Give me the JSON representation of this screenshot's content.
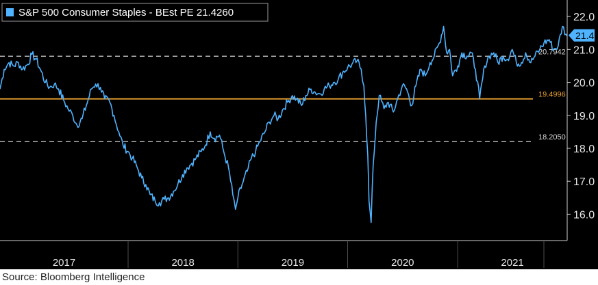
{
  "legend": {
    "label": "S&P 500 Consumer Staples - BEst PE 21.4260",
    "swatch_color": "#4fb3ff"
  },
  "source": "Source: Bloomberg Intelligence",
  "current_value_label": "21.4",
  "colors": {
    "background": "#000000",
    "series": "#4fb3ff",
    "mean_line": "#e8a030",
    "sd_lines": "#d9d9d9",
    "axis_text": "#e6e6e6",
    "divider": "#4d4d4d"
  },
  "chart_data": {
    "type": "line",
    "title": "S&P 500 Consumer Staples - BEst PE 21.4260",
    "xlabel": "",
    "ylabel": "",
    "ylim": [
      15.2,
      22.5
    ],
    "yticks": [
      "16.0",
      "17.0",
      "18.0",
      "19.0",
      "20.0",
      "21.0",
      "22.0"
    ],
    "xlim": [
      "2016-11-01",
      "2021-12-31"
    ],
    "years": [
      "2017",
      "2018",
      "2019",
      "2020",
      "2021"
    ],
    "grid": false,
    "legend_position": "top-left",
    "reference_lines": [
      {
        "value": 20.7942,
        "label": "20.7942",
        "style": "dashed",
        "color": "#d9d9d9"
      },
      {
        "value": 19.4996,
        "label": "19.4996",
        "style": "solid",
        "color": "#e8a030"
      },
      {
        "value": 18.205,
        "label": "18.2050",
        "style": "dashed",
        "color": "#d9d9d9"
      }
    ],
    "series": [
      {
        "name": "S&P 500 Consumer Staples - BEst PE",
        "color": "#4fb3ff",
        "last_value": 21.426,
        "points": [
          [
            "2016-11-01",
            19.8
          ],
          [
            "2016-11-15",
            20.4
          ],
          [
            "2016-12-01",
            20.6
          ],
          [
            "2016-12-15",
            20.5
          ],
          [
            "2017-01-01",
            20.6
          ],
          [
            "2017-01-15",
            20.4
          ],
          [
            "2017-02-01",
            20.55
          ],
          [
            "2017-02-15",
            20.85
          ],
          [
            "2017-03-01",
            20.7
          ],
          [
            "2017-03-15",
            20.4
          ],
          [
            "2017-04-01",
            20.0
          ],
          [
            "2017-04-15",
            19.85
          ],
          [
            "2017-05-01",
            19.95
          ],
          [
            "2017-05-15",
            19.8
          ],
          [
            "2017-06-01",
            19.45
          ],
          [
            "2017-06-15",
            19.2
          ],
          [
            "2017-07-01",
            19.0
          ],
          [
            "2017-07-15",
            18.7
          ],
          [
            "2017-08-01",
            18.9
          ],
          [
            "2017-08-15",
            19.3
          ],
          [
            "2017-09-01",
            19.8
          ],
          [
            "2017-09-15",
            19.95
          ],
          [
            "2017-10-01",
            19.85
          ],
          [
            "2017-10-15",
            19.5
          ],
          [
            "2017-11-01",
            19.4
          ],
          [
            "2017-11-15",
            19.0
          ],
          [
            "2017-12-01",
            18.5
          ],
          [
            "2017-12-15",
            18.1
          ],
          [
            "2018-01-01",
            17.9
          ],
          [
            "2018-01-15",
            17.7
          ],
          [
            "2018-02-01",
            17.4
          ],
          [
            "2018-02-15",
            17.1
          ],
          [
            "2018-03-01",
            16.9
          ],
          [
            "2018-03-15",
            16.6
          ],
          [
            "2018-04-01",
            16.4
          ],
          [
            "2018-04-15",
            16.35
          ],
          [
            "2018-05-01",
            16.45
          ],
          [
            "2018-05-15",
            16.5
          ],
          [
            "2018-06-01",
            16.7
          ],
          [
            "2018-06-15",
            16.9
          ],
          [
            "2018-07-01",
            17.2
          ],
          [
            "2018-07-15",
            17.4
          ],
          [
            "2018-08-01",
            17.55
          ],
          [
            "2018-08-15",
            17.7
          ],
          [
            "2018-09-01",
            17.9
          ],
          [
            "2018-09-15",
            18.1
          ],
          [
            "2018-10-01",
            18.5
          ],
          [
            "2018-10-15",
            18.3
          ],
          [
            "2018-11-01",
            18.4
          ],
          [
            "2018-11-15",
            17.9
          ],
          [
            "2018-12-01",
            17.4
          ],
          [
            "2018-12-15",
            16.6
          ],
          [
            "2018-12-24",
            16.15
          ],
          [
            "2019-01-01",
            16.5
          ],
          [
            "2019-01-15",
            16.9
          ],
          [
            "2019-02-01",
            17.3
          ],
          [
            "2019-02-15",
            17.7
          ],
          [
            "2019-03-01",
            17.9
          ],
          [
            "2019-03-15",
            18.2
          ],
          [
            "2019-04-01",
            18.5
          ],
          [
            "2019-04-15",
            18.8
          ],
          [
            "2019-05-01",
            19.0
          ],
          [
            "2019-05-15",
            18.9
          ],
          [
            "2019-06-01",
            19.2
          ],
          [
            "2019-06-15",
            19.4
          ],
          [
            "2019-07-01",
            19.6
          ],
          [
            "2019-07-15",
            19.5
          ],
          [
            "2019-08-01",
            19.3
          ],
          [
            "2019-08-15",
            19.6
          ],
          [
            "2019-09-01",
            19.8
          ],
          [
            "2019-09-15",
            19.7
          ],
          [
            "2019-10-01",
            19.65
          ],
          [
            "2019-10-15",
            19.8
          ],
          [
            "2019-11-01",
            19.9
          ],
          [
            "2019-11-15",
            20.0
          ],
          [
            "2019-12-01",
            20.1
          ],
          [
            "2019-12-15",
            20.3
          ],
          [
            "2020-01-01",
            20.45
          ],
          [
            "2020-01-15",
            20.55
          ],
          [
            "2020-02-01",
            20.65
          ],
          [
            "2020-02-15",
            20.4
          ],
          [
            "2020-02-24",
            19.9
          ],
          [
            "2020-03-01",
            19.0
          ],
          [
            "2020-03-08",
            17.8
          ],
          [
            "2020-03-12",
            16.4
          ],
          [
            "2020-03-19",
            15.75
          ],
          [
            "2020-03-26",
            17.5
          ],
          [
            "2020-04-05",
            18.8
          ],
          [
            "2020-04-15",
            19.6
          ],
          [
            "2020-05-01",
            19.2
          ],
          [
            "2020-05-15",
            19.4
          ],
          [
            "2020-06-01",
            19.1
          ],
          [
            "2020-06-15",
            19.5
          ],
          [
            "2020-07-01",
            19.9
          ],
          [
            "2020-07-15",
            19.8
          ],
          [
            "2020-08-01",
            19.3
          ],
          [
            "2020-08-15",
            19.9
          ],
          [
            "2020-09-01",
            20.4
          ],
          [
            "2020-09-15",
            20.2
          ],
          [
            "2020-10-01",
            20.6
          ],
          [
            "2020-10-15",
            20.8
          ],
          [
            "2020-11-01",
            21.2
          ],
          [
            "2020-11-15",
            21.7
          ],
          [
            "2020-11-25",
            20.9
          ],
          [
            "2020-12-05",
            21.0
          ],
          [
            "2020-12-15",
            20.2
          ],
          [
            "2021-01-01",
            20.5
          ],
          [
            "2021-01-15",
            20.9
          ],
          [
            "2021-02-01",
            20.8
          ],
          [
            "2021-02-15",
            20.9
          ],
          [
            "2021-03-01",
            20.4
          ],
          [
            "2021-03-15",
            19.5
          ],
          [
            "2021-04-01",
            20.5
          ],
          [
            "2021-04-15",
            20.8
          ],
          [
            "2021-05-01",
            20.9
          ],
          [
            "2021-05-15",
            20.6
          ],
          [
            "2021-06-01",
            20.8
          ],
          [
            "2021-06-15",
            20.7
          ],
          [
            "2021-07-01",
            21.0
          ],
          [
            "2021-07-15",
            20.6
          ],
          [
            "2021-08-01",
            20.6
          ],
          [
            "2021-08-15",
            20.9
          ],
          [
            "2021-09-01",
            20.6
          ],
          [
            "2021-09-15",
            20.8
          ],
          [
            "2021-10-01",
            21.0
          ],
          [
            "2021-10-15",
            21.2
          ],
          [
            "2021-11-01",
            21.3
          ],
          [
            "2021-11-15",
            21.0
          ],
          [
            "2021-12-01",
            21.1
          ],
          [
            "2021-12-15",
            21.7
          ],
          [
            "2021-12-31",
            21.4
          ]
        ]
      }
    ]
  }
}
